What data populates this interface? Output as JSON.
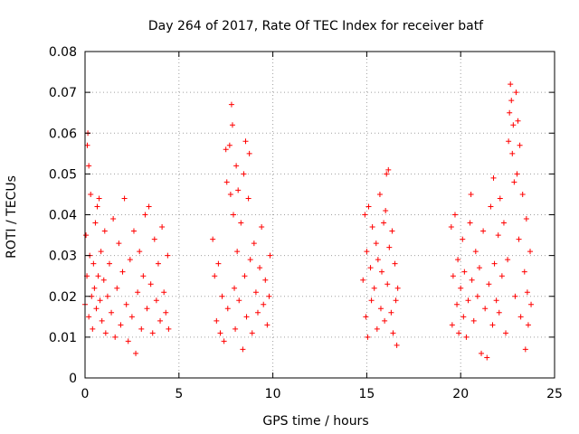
{
  "chart_data": {
    "type": "scatter",
    "title": "Day 264 of 2017, Rate Of TEC Index for receiver batf",
    "xlabel": "GPS time / hours",
    "ylabel": "ROTI / TECUs",
    "xlim": [
      0,
      25
    ],
    "ylim": [
      0,
      0.08
    ],
    "xticks": [
      "0",
      "5",
      "10",
      "15",
      "20",
      "25"
    ],
    "yticks": [
      "0",
      "0.01",
      "0.02",
      "0.03",
      "0.04",
      "0.05",
      "0.06",
      "0.07",
      "0.08"
    ],
    "grid": true,
    "marker": "+",
    "color": "#ff0000",
    "series": [
      {
        "points": [
          [
            0.0,
            0.018
          ],
          [
            0.05,
            0.035
          ],
          [
            0.1,
            0.025
          ],
          [
            0.12,
            0.057
          ],
          [
            0.15,
            0.06
          ],
          [
            0.2,
            0.052
          ],
          [
            0.2,
            0.015
          ],
          [
            0.25,
            0.03
          ],
          [
            0.3,
            0.045
          ],
          [
            0.35,
            0.02
          ],
          [
            0.4,
            0.012
          ],
          [
            0.45,
            0.028
          ],
          [
            0.5,
            0.022
          ],
          [
            0.55,
            0.038
          ],
          [
            0.6,
            0.017
          ],
          [
            0.65,
            0.042
          ],
          [
            0.7,
            0.025
          ],
          [
            0.75,
            0.044
          ],
          [
            0.8,
            0.019
          ],
          [
            0.85,
            0.031
          ],
          [
            0.9,
            0.014
          ],
          [
            1.0,
            0.024
          ],
          [
            1.05,
            0.036
          ],
          [
            1.1,
            0.011
          ],
          [
            1.2,
            0.02
          ],
          [
            1.3,
            0.028
          ],
          [
            1.4,
            0.016
          ],
          [
            1.5,
            0.039
          ],
          [
            1.6,
            0.01
          ],
          [
            1.7,
            0.022
          ],
          [
            1.8,
            0.033
          ],
          [
            1.9,
            0.013
          ],
          [
            2.0,
            0.026
          ],
          [
            2.1,
            0.044
          ],
          [
            2.2,
            0.018
          ],
          [
            2.3,
            0.009
          ],
          [
            2.4,
            0.029
          ],
          [
            2.5,
            0.015
          ],
          [
            2.6,
            0.036
          ],
          [
            2.7,
            0.006
          ],
          [
            2.8,
            0.021
          ],
          [
            2.9,
            0.031
          ],
          [
            3.0,
            0.012
          ],
          [
            3.1,
            0.025
          ],
          [
            3.2,
            0.04
          ],
          [
            3.3,
            0.017
          ],
          [
            3.4,
            0.042
          ],
          [
            3.5,
            0.023
          ],
          [
            3.6,
            0.011
          ],
          [
            3.7,
            0.034
          ],
          [
            3.8,
            0.019
          ],
          [
            3.9,
            0.028
          ],
          [
            4.0,
            0.014
          ],
          [
            4.1,
            0.037
          ],
          [
            4.2,
            0.021
          ],
          [
            4.3,
            0.016
          ],
          [
            4.4,
            0.03
          ],
          [
            4.45,
            0.012
          ],
          [
            6.8,
            0.034
          ],
          [
            6.9,
            0.025
          ],
          [
            7.0,
            0.014
          ],
          [
            7.1,
            0.028
          ],
          [
            7.2,
            0.011
          ],
          [
            7.3,
            0.02
          ],
          [
            7.4,
            0.009
          ],
          [
            7.5,
            0.056
          ],
          [
            7.55,
            0.048
          ],
          [
            7.6,
            0.017
          ],
          [
            7.7,
            0.057
          ],
          [
            7.75,
            0.045
          ],
          [
            7.8,
            0.067
          ],
          [
            7.85,
            0.062
          ],
          [
            7.9,
            0.04
          ],
          [
            7.95,
            0.022
          ],
          [
            8.0,
            0.012
          ],
          [
            8.05,
            0.052
          ],
          [
            8.1,
            0.031
          ],
          [
            8.15,
            0.046
          ],
          [
            8.2,
            0.019
          ],
          [
            8.3,
            0.038
          ],
          [
            8.4,
            0.007
          ],
          [
            8.45,
            0.05
          ],
          [
            8.5,
            0.025
          ],
          [
            8.55,
            0.058
          ],
          [
            8.6,
            0.015
          ],
          [
            8.7,
            0.044
          ],
          [
            8.75,
            0.055
          ],
          [
            8.8,
            0.029
          ],
          [
            8.9,
            0.011
          ],
          [
            9.0,
            0.033
          ],
          [
            9.1,
            0.021
          ],
          [
            9.2,
            0.016
          ],
          [
            9.3,
            0.027
          ],
          [
            9.4,
            0.037
          ],
          [
            9.5,
            0.018
          ],
          [
            9.6,
            0.024
          ],
          [
            9.7,
            0.013
          ],
          [
            9.8,
            0.02
          ],
          [
            9.85,
            0.03
          ],
          [
            14.8,
            0.024
          ],
          [
            14.9,
            0.04
          ],
          [
            14.95,
            0.015
          ],
          [
            15.0,
            0.031
          ],
          [
            15.05,
            0.01
          ],
          [
            15.1,
            0.042
          ],
          [
            15.2,
            0.027
          ],
          [
            15.25,
            0.019
          ],
          [
            15.3,
            0.037
          ],
          [
            15.4,
            0.022
          ],
          [
            15.5,
            0.033
          ],
          [
            15.55,
            0.012
          ],
          [
            15.6,
            0.029
          ],
          [
            15.7,
            0.045
          ],
          [
            15.75,
            0.017
          ],
          [
            15.8,
            0.026
          ],
          [
            15.9,
            0.038
          ],
          [
            15.95,
            0.014
          ],
          [
            16.0,
            0.041
          ],
          [
            16.05,
            0.05
          ],
          [
            16.1,
            0.023
          ],
          [
            16.15,
            0.051
          ],
          [
            16.2,
            0.032
          ],
          [
            16.3,
            0.016
          ],
          [
            16.35,
            0.036
          ],
          [
            16.4,
            0.011
          ],
          [
            16.5,
            0.028
          ],
          [
            16.55,
            0.019
          ],
          [
            16.6,
            0.008
          ],
          [
            16.65,
            0.022
          ],
          [
            19.5,
            0.037
          ],
          [
            19.55,
            0.013
          ],
          [
            19.6,
            0.025
          ],
          [
            19.7,
            0.04
          ],
          [
            19.8,
            0.018
          ],
          [
            19.85,
            0.029
          ],
          [
            19.9,
            0.011
          ],
          [
            20.0,
            0.022
          ],
          [
            20.1,
            0.034
          ],
          [
            20.15,
            0.015
          ],
          [
            20.2,
            0.026
          ],
          [
            20.3,
            0.01
          ],
          [
            20.4,
            0.019
          ],
          [
            20.5,
            0.038
          ],
          [
            20.55,
            0.045
          ],
          [
            20.6,
            0.024
          ],
          [
            20.7,
            0.014
          ],
          [
            20.8,
            0.031
          ],
          [
            20.9,
            0.02
          ],
          [
            21.0,
            0.027
          ],
          [
            21.1,
            0.006
          ],
          [
            21.2,
            0.036
          ],
          [
            21.3,
            0.017
          ],
          [
            21.4,
            0.005
          ],
          [
            21.5,
            0.023
          ],
          [
            21.6,
            0.042
          ],
          [
            21.7,
            0.013
          ],
          [
            21.75,
            0.049
          ],
          [
            21.8,
            0.028
          ],
          [
            21.9,
            0.019
          ],
          [
            22.0,
            0.035
          ],
          [
            22.05,
            0.016
          ],
          [
            22.1,
            0.044
          ],
          [
            22.2,
            0.025
          ],
          [
            22.3,
            0.038
          ],
          [
            22.4,
            0.011
          ],
          [
            22.5,
            0.029
          ],
          [
            22.55,
            0.058
          ],
          [
            22.6,
            0.065
          ],
          [
            22.65,
            0.072
          ],
          [
            22.7,
            0.068
          ],
          [
            22.75,
            0.055
          ],
          [
            22.8,
            0.062
          ],
          [
            22.85,
            0.048
          ],
          [
            22.9,
            0.02
          ],
          [
            22.95,
            0.07
          ],
          [
            23.0,
            0.05
          ],
          [
            23.05,
            0.063
          ],
          [
            23.1,
            0.034
          ],
          [
            23.15,
            0.057
          ],
          [
            23.2,
            0.015
          ],
          [
            23.3,
            0.045
          ],
          [
            23.4,
            0.026
          ],
          [
            23.45,
            0.007
          ],
          [
            23.5,
            0.039
          ],
          [
            23.55,
            0.021
          ],
          [
            23.6,
            0.013
          ],
          [
            23.7,
            0.031
          ],
          [
            23.75,
            0.018
          ]
        ]
      }
    ]
  }
}
